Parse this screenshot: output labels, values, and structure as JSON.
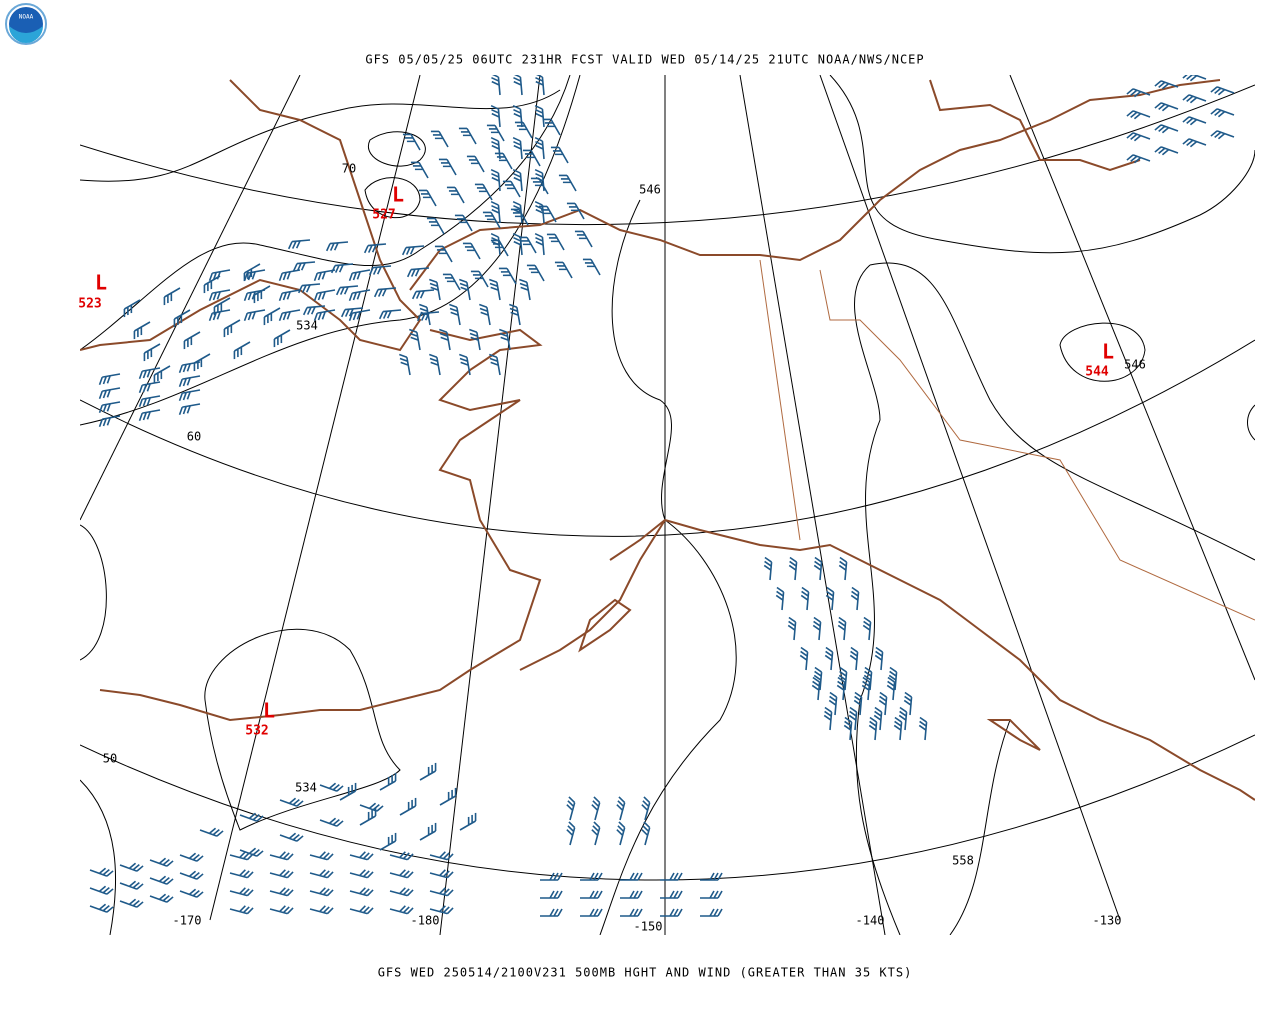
{
  "header": {
    "title": "GFS 05/05/25 06UTC 231HR FCST VALID WED 05/14/25 21UTC NOAA/NWS/NCEP"
  },
  "footer": {
    "caption": "GFS WED 250514/2100V231 500MB HGHT AND WIND (GREATER THAN 35 KTS)"
  },
  "logo": {
    "text": "NOAA"
  },
  "lows": [
    {
      "symbol": "L",
      "value": "527"
    },
    {
      "symbol": "L",
      "value": "523"
    },
    {
      "symbol": "L",
      "value": "532"
    },
    {
      "symbol": "L",
      "value": "544"
    }
  ],
  "height_labels": [
    "546",
    "534",
    "534",
    "546",
    "558"
  ],
  "latitude_labels": [
    "70",
    "60",
    "50"
  ],
  "longitude_labels": [
    "-170",
    "-180",
    "-150",
    "-140",
    "-130"
  ]
}
